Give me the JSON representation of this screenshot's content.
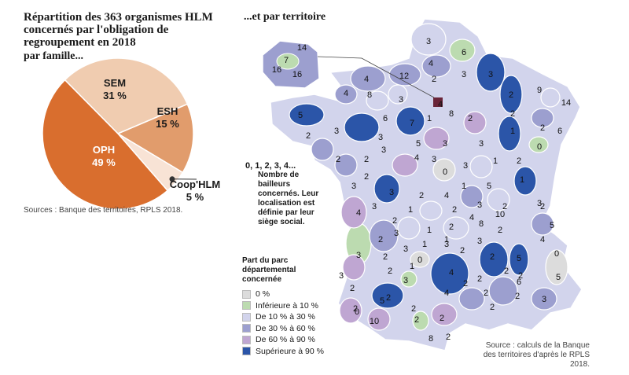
{
  "title": "Répartition des 363 organismes HLM concernés par l'obligation de regroupement en 2018",
  "pie": {
    "subtitle": "par famille...",
    "source": "Sources : Banque des territoires, RPLS 2018.",
    "slices": [
      {
        "name": "SEM",
        "pct": "31 %",
        "value": 31,
        "color": "#f0ccb0"
      },
      {
        "name": "ESH",
        "pct": "15 %",
        "value": 15,
        "color": "#e19c6c"
      },
      {
        "name": "Coop'HLM",
        "pct": "5 %",
        "value": 5,
        "color": "#f8e3d5"
      },
      {
        "name": "OPH",
        "pct": "49 %",
        "value": 49,
        "color": "#d96e2e"
      }
    ]
  },
  "map": {
    "subtitle": "...et par territoire",
    "note_head": "0, 1, 2, 3, 4...",
    "note_body": "Nombre de bailleurs concernés. Leur localisation est définie par leur siège social.",
    "legend_title": "Part du parc départemental concernée",
    "legend": [
      {
        "label": "0 %",
        "color": "#dcdcdc"
      },
      {
        "label": "Inférieure à 10 %",
        "color": "#bcdbb0"
      },
      {
        "label": "De 10 % à 30 %",
        "color": "#d2d4ec"
      },
      {
        "label": "De 30 % à 60 %",
        "color": "#9c9fcf"
      },
      {
        "label": "De 60 % à 90 %",
        "color": "#bfa6d2"
      },
      {
        "label": "Supérieure à 90 %",
        "color": "#2b55a8"
      }
    ],
    "source_line1": "Source : calculs de la Banque",
    "source_line2": "des territoires d'après le RPLS 2018.",
    "inset_values": [
      "14",
      "7",
      "16",
      "16"
    ],
    "department_values": [
      "3",
      "6",
      "4",
      "3",
      "3",
      "12",
      "4",
      "3",
      "2",
      "2",
      "9",
      "14",
      "4",
      "8",
      "2",
      "1",
      "4",
      "8",
      "2",
      "6",
      "5",
      "2",
      "7",
      "1",
      "2",
      "3",
      "3",
      "3",
      "6",
      "5",
      "3",
      "2",
      "3",
      "2",
      "2",
      "3",
      "0",
      "4",
      "3",
      "3",
      "1",
      "2",
      "5",
      "1",
      "2",
      "0",
      "4",
      "2",
      "3",
      "3",
      "1",
      "2",
      "1",
      "3",
      "2",
      "5",
      "1",
      "2",
      "3",
      "4",
      "2",
      "2",
      "2",
      "3",
      "2",
      "4",
      "1",
      "2",
      "10",
      "4",
      "5",
      "2",
      "3",
      "4",
      "3",
      "1",
      "3",
      "8",
      "1",
      "3",
      "2",
      "5",
      "2",
      "0",
      "2",
      "3",
      "0",
      "3",
      "4",
      "2",
      "2",
      "2",
      "6",
      "2",
      "2",
      "2",
      "10",
      "2",
      "5",
      "2",
      "2",
      "2",
      "8",
      "2",
      "0",
      "3",
      "2"
    ]
  }
}
